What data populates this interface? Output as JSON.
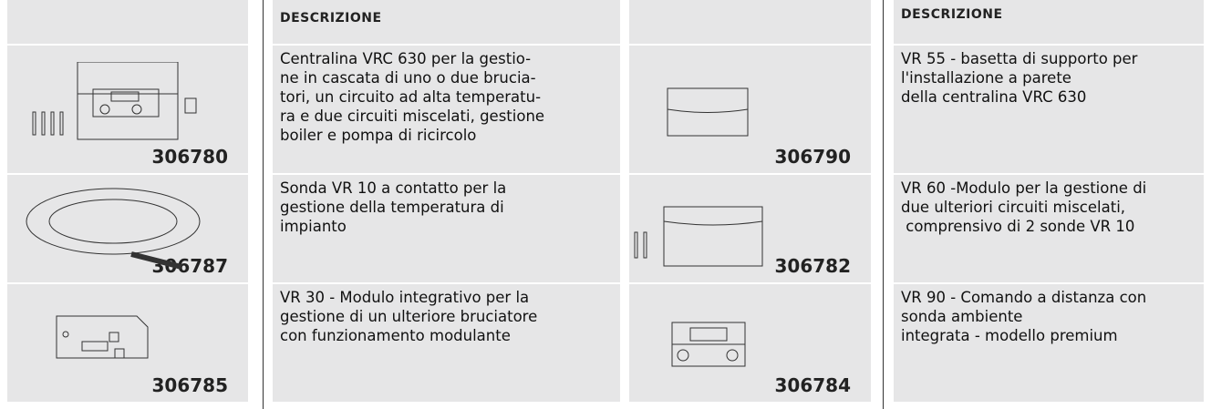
{
  "tables": [
    {
      "header": "DESCRIZIONE",
      "rows": [
        {
          "code": "306780",
          "description": [
            "Centralina VRC 630 per la gestio-",
            "ne in cascata di uno o due brucia-",
            "tori, un circuito ad alta temperatu-",
            "ra e due circuiti miscelati, gestione",
            "boiler e pompa di ricircolo"
          ]
        },
        {
          "code": "306787",
          "description": [
            "Sonda VR 10 a contatto per la",
            "gestione della temperatura di",
            "impianto"
          ]
        },
        {
          "code": "306785",
          "description": [
            "VR 30 - Modulo integrativo per la",
            "gestione di un ulteriore bruciatore",
            "con funzionamento modulante"
          ]
        }
      ]
    },
    {
      "header": "DESCRIZIONE",
      "rows": [
        {
          "code": "306790",
          "description": [
            "VR 55 - basetta di supporto per",
            "l'installazione a parete",
            "della centralina VRC 630"
          ]
        },
        {
          "code": "306782",
          "description": [
            "VR 60 -Modulo per la gestione di",
            "due ulteriori circuiti miscelati,",
            " comprensivo di 2 sonde VR 10"
          ]
        },
        {
          "code": "306784",
          "description": [
            "VR 90 - Comando a distanza con",
            "sonda ambiente",
            "integrata - modello premium"
          ]
        }
      ]
    }
  ]
}
